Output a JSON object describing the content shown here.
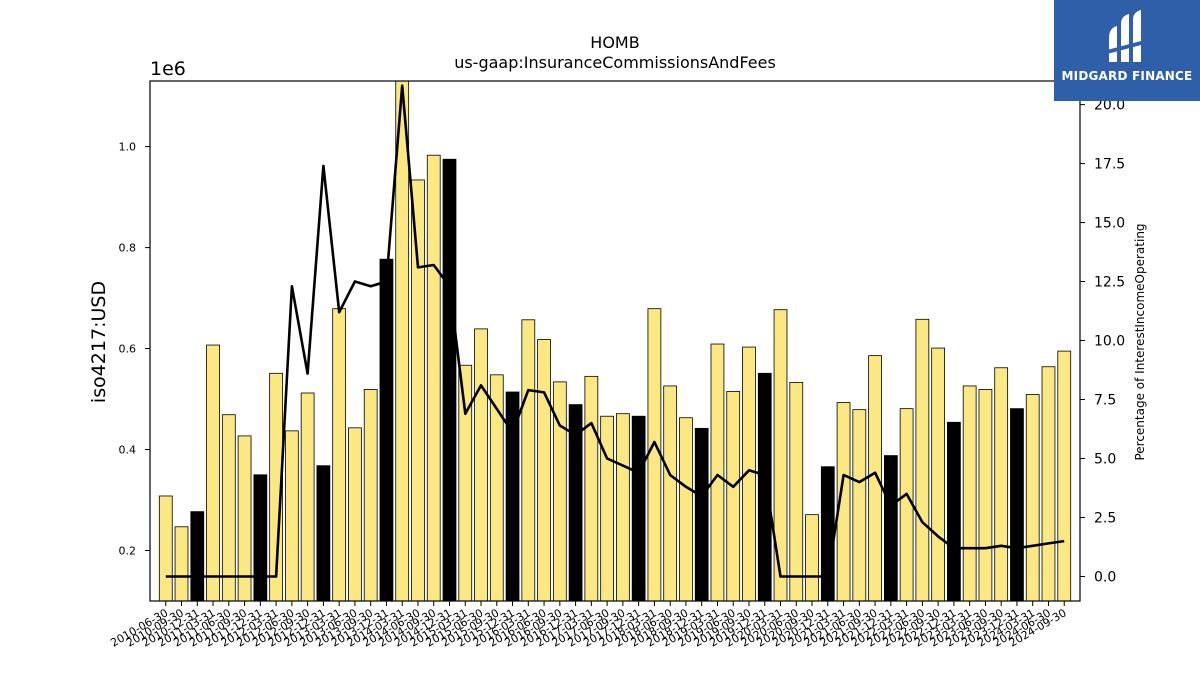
{
  "header": {
    "title": "HOMB",
    "subtitle": "us-gaap:InsuranceCommissionsAndFees"
  },
  "logo": {
    "text": "MIDGARD FINANCE",
    "icon": "midgard-logo-icon"
  },
  "colors": {
    "bar_annual": "#000000",
    "bar_quarter": "#fbe882",
    "line": "#000000"
  },
  "chart_data": {
    "type": "bar",
    "scale_label": "1e6",
    "ylabel": "iso4217:USD",
    "y2label": "Percentage of InterestIncomeOperating",
    "ylim": [
      0.1,
      1.13
    ],
    "y2lim": [
      -1.04,
      21.0
    ],
    "yticks": [
      "0.2",
      "0.4",
      "0.6",
      "0.8",
      "1.0"
    ],
    "y2ticks": [
      "0.0",
      "2.5",
      "5.0",
      "7.5",
      "10.0",
      "12.5",
      "15.0",
      "17.5",
      "20.0"
    ],
    "categories": [
      "2010-06-30",
      "2010-09-30",
      "2010-12-31",
      "2011-03-31",
      "2011-06-30",
      "2011-09-30",
      "2011-12-31",
      "2012-03-31",
      "2012-06-30",
      "2012-09-30",
      "2012-12-31",
      "2013-03-31",
      "2013-06-30",
      "2013-09-30",
      "2013-12-31",
      "2014-03-31",
      "2014-06-30",
      "2014-09-30",
      "2014-12-31",
      "2015-03-31",
      "2015-06-30",
      "2015-09-30",
      "2015-12-31",
      "2016-03-31",
      "2016-06-30",
      "2016-09-30",
      "2016-12-31",
      "2017-03-31",
      "2017-06-30",
      "2017-09-30",
      "2017-12-31",
      "2018-03-31",
      "2018-06-30",
      "2018-09-30",
      "2018-12-31",
      "2019-03-31",
      "2019-06-30",
      "2019-09-30",
      "2019-12-31",
      "2020-03-31",
      "2020-06-30",
      "2020-09-30",
      "2020-12-31",
      "2021-03-31",
      "2021-06-30",
      "2021-09-30",
      "2021-12-31",
      "2022-03-31",
      "2022-06-30",
      "2022-09-30",
      "2022-12-31",
      "2023-03-31",
      "2023-06-30",
      "2023-09-30",
      "2023-12-31",
      "2024-03-31",
      "2024-06-30",
      "2024-09-30"
    ],
    "series": [
      {
        "values": [
          0.308,
          0.247,
          0.277,
          0.607,
          0.469,
          0.427,
          0.35,
          0.551,
          0.437,
          0.512,
          0.368,
          0.679,
          0.443,
          0.519,
          0.777,
          1.13,
          0.934,
          0.983,
          0.975,
          0.567,
          0.639,
          0.548,
          0.514,
          0.657,
          0.618,
          0.534,
          0.489,
          0.545,
          0.466,
          0.471,
          0.466,
          0.679,
          0.526,
          0.463,
          0.442,
          0.609,
          0.515,
          0.603,
          0.551,
          0.677,
          0.533,
          0.271,
          0.366,
          0.493,
          0.479,
          0.586,
          0.388,
          0.481,
          0.658,
          0.601,
          0.454,
          0.526,
          0.519,
          0.562,
          0.481,
          0.509,
          0.564,
          0.595
        ],
        "annual_flags": [
          0,
          0,
          1,
          0,
          0,
          0,
          1,
          0,
          0,
          0,
          1,
          0,
          0,
          0,
          1,
          0,
          0,
          0,
          1,
          0,
          0,
          0,
          1,
          0,
          0,
          0,
          1,
          0,
          0,
          0,
          1,
          0,
          0,
          0,
          1,
          0,
          0,
          0,
          1,
          0,
          0,
          0,
          1,
          0,
          0,
          0,
          1,
          0,
          0,
          0,
          1,
          0,
          0,
          0,
          1,
          0,
          0,
          0
        ]
      },
      {
        "name": "Percentage of InterestIncomeOperating",
        "values": [
          0.0,
          0.0,
          0.0,
          0.0,
          0.0,
          0.0,
          0.0,
          0.0,
          12.3,
          8.6,
          17.4,
          11.2,
          12.5,
          12.3,
          12.5,
          20.8,
          13.1,
          13.2,
          12.3,
          6.9,
          8.1,
          7.1,
          6.1,
          7.9,
          7.8,
          6.4,
          6.0,
          6.5,
          5.0,
          4.7,
          4.4,
          5.7,
          4.3,
          3.8,
          3.4,
          4.3,
          3.8,
          4.5,
          4.3,
          0.0,
          0.0,
          0.0,
          0.0,
          4.3,
          4.0,
          4.4,
          3.0,
          3.5,
          2.3,
          1.7,
          1.2,
          1.2,
          1.2,
          1.3,
          1.2,
          1.3,
          1.4,
          1.5
        ]
      }
    ]
  }
}
